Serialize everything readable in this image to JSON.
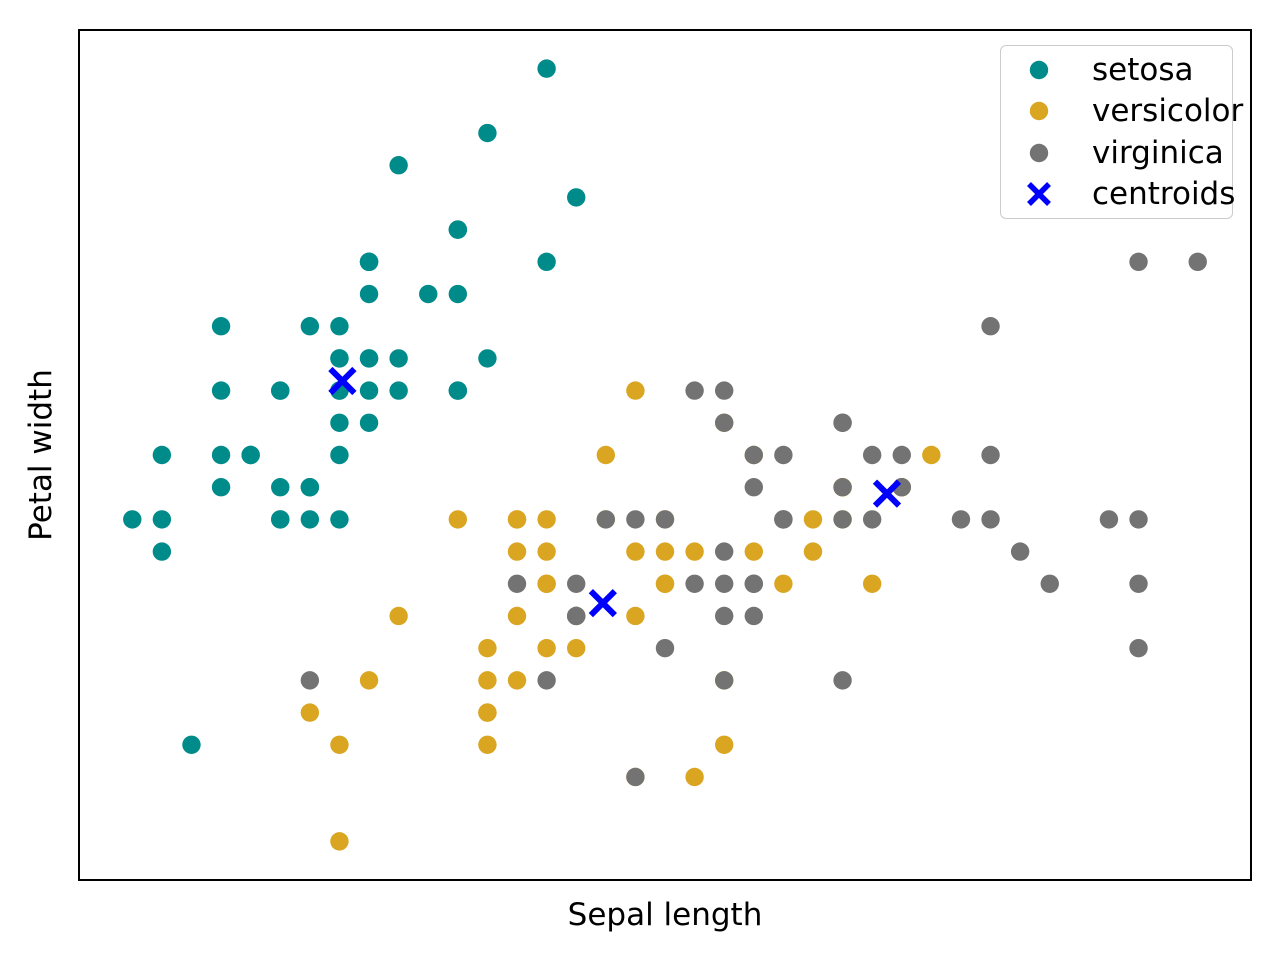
{
  "chart_data": {
    "type": "scatter",
    "title": "",
    "xlabel": "Sepal length",
    "ylabel": "Petal width",
    "xlim": [
      4.12,
      8.08
    ],
    "ylim": [
      1.88,
      4.52
    ],
    "grid": false,
    "ticks_visible": false,
    "axis_color": "#000000",
    "legend": {
      "position": "upper right",
      "border_color": "#cccccc",
      "entries": [
        "setosa",
        "versicolor",
        "virginica",
        "centroids"
      ]
    },
    "series": [
      {
        "name": "setosa",
        "marker": "circle",
        "color": "#008B8B",
        "points": [
          [
            5.1,
            3.5
          ],
          [
            4.9,
            3.0
          ],
          [
            4.7,
            3.2
          ],
          [
            4.6,
            3.1
          ],
          [
            5.0,
            3.6
          ],
          [
            5.4,
            3.9
          ],
          [
            4.6,
            3.4
          ],
          [
            5.0,
            3.4
          ],
          [
            4.4,
            2.9
          ],
          [
            4.9,
            3.1
          ],
          [
            5.4,
            3.7
          ],
          [
            4.8,
            3.4
          ],
          [
            4.8,
            3.0
          ],
          [
            4.3,
            3.0
          ],
          [
            5.8,
            4.0
          ],
          [
            5.7,
            4.4
          ],
          [
            5.4,
            3.9
          ],
          [
            5.1,
            3.5
          ],
          [
            5.7,
            3.8
          ],
          [
            5.1,
            3.8
          ],
          [
            5.4,
            3.4
          ],
          [
            5.1,
            3.7
          ],
          [
            4.6,
            3.6
          ],
          [
            5.1,
            3.3
          ],
          [
            4.8,
            3.4
          ],
          [
            5.0,
            3.0
          ],
          [
            5.0,
            3.4
          ],
          [
            5.2,
            3.5
          ],
          [
            5.2,
            3.4
          ],
          [
            4.7,
            3.2
          ],
          [
            4.8,
            3.1
          ],
          [
            5.4,
            3.4
          ],
          [
            5.2,
            4.1
          ],
          [
            5.5,
            4.2
          ],
          [
            4.9,
            3.1
          ],
          [
            5.0,
            3.2
          ],
          [
            5.5,
            3.5
          ],
          [
            4.9,
            3.6
          ],
          [
            4.4,
            3.0
          ],
          [
            5.1,
            3.4
          ],
          [
            5.0,
            3.5
          ],
          [
            4.5,
            2.3
          ],
          [
            4.4,
            3.2
          ],
          [
            5.0,
            3.5
          ],
          [
            5.1,
            3.8
          ],
          [
            4.8,
            3.0
          ],
          [
            5.1,
            3.8
          ],
          [
            4.6,
            3.2
          ],
          [
            5.3,
            3.7
          ],
          [
            5.0,
            3.3
          ]
        ]
      },
      {
        "name": "versicolor",
        "marker": "circle",
        "color": "#DAA520",
        "points": [
          [
            7.0,
            3.2
          ],
          [
            6.4,
            3.2
          ],
          [
            6.9,
            3.1
          ],
          [
            5.5,
            2.3
          ],
          [
            6.5,
            2.8
          ],
          [
            5.7,
            2.8
          ],
          [
            6.3,
            3.3
          ],
          [
            4.9,
            2.4
          ],
          [
            6.6,
            2.9
          ],
          [
            5.2,
            2.7
          ],
          [
            5.0,
            2.0
          ],
          [
            5.9,
            3.0
          ],
          [
            6.0,
            2.2
          ],
          [
            6.1,
            2.9
          ],
          [
            5.6,
            2.9
          ],
          [
            6.7,
            3.1
          ],
          [
            5.6,
            3.0
          ],
          [
            5.8,
            2.7
          ],
          [
            6.2,
            2.2
          ],
          [
            5.6,
            2.5
          ],
          [
            5.9,
            3.2
          ],
          [
            6.1,
            2.8
          ],
          [
            6.3,
            2.5
          ],
          [
            6.1,
            2.8
          ],
          [
            6.4,
            2.9
          ],
          [
            6.6,
            3.0
          ],
          [
            6.8,
            2.8
          ],
          [
            6.7,
            3.0
          ],
          [
            6.0,
            2.9
          ],
          [
            5.7,
            2.6
          ],
          [
            5.5,
            2.4
          ],
          [
            5.5,
            2.4
          ],
          [
            5.8,
            2.7
          ],
          [
            6.0,
            2.7
          ],
          [
            5.4,
            3.0
          ],
          [
            6.0,
            3.4
          ],
          [
            6.7,
            3.1
          ],
          [
            6.3,
            2.3
          ],
          [
            5.6,
            3.0
          ],
          [
            5.5,
            2.5
          ],
          [
            5.5,
            2.6
          ],
          [
            6.1,
            3.0
          ],
          [
            5.8,
            2.6
          ],
          [
            5.0,
            2.3
          ],
          [
            5.6,
            2.7
          ],
          [
            5.7,
            3.0
          ],
          [
            5.7,
            2.9
          ],
          [
            6.2,
            2.9
          ],
          [
            5.1,
            2.5
          ],
          [
            5.7,
            2.8
          ]
        ]
      },
      {
        "name": "virginica",
        "marker": "circle",
        "color": "#737373",
        "points": [
          [
            6.3,
            3.3
          ],
          [
            5.8,
            2.7
          ],
          [
            7.1,
            3.0
          ],
          [
            6.3,
            2.9
          ],
          [
            6.5,
            3.0
          ],
          [
            7.6,
            3.0
          ],
          [
            4.9,
            2.5
          ],
          [
            7.3,
            2.9
          ],
          [
            6.7,
            2.5
          ],
          [
            7.2,
            3.6
          ],
          [
            6.5,
            3.2
          ],
          [
            6.4,
            2.7
          ],
          [
            6.8,
            3.0
          ],
          [
            5.7,
            2.5
          ],
          [
            5.8,
            2.8
          ],
          [
            6.4,
            3.2
          ],
          [
            6.5,
            3.0
          ],
          [
            7.7,
            3.8
          ],
          [
            7.7,
            2.6
          ],
          [
            6.0,
            2.2
          ],
          [
            6.9,
            3.2
          ],
          [
            5.6,
            2.8
          ],
          [
            7.7,
            2.8
          ],
          [
            6.3,
            2.7
          ],
          [
            6.7,
            3.3
          ],
          [
            7.2,
            3.2
          ],
          [
            6.2,
            2.8
          ],
          [
            6.1,
            3.0
          ],
          [
            6.4,
            2.8
          ],
          [
            7.2,
            3.0
          ],
          [
            7.4,
            2.8
          ],
          [
            7.9,
            3.8
          ],
          [
            6.4,
            2.8
          ],
          [
            6.3,
            2.8
          ],
          [
            6.1,
            2.6
          ],
          [
            7.7,
            3.0
          ],
          [
            6.3,
            3.4
          ],
          [
            6.4,
            3.1
          ],
          [
            6.0,
            3.0
          ],
          [
            6.9,
            3.1
          ],
          [
            6.7,
            3.1
          ],
          [
            6.9,
            3.1
          ],
          [
            5.8,
            2.7
          ],
          [
            6.8,
            3.2
          ],
          [
            6.7,
            3.3
          ],
          [
            6.7,
            3.0
          ],
          [
            6.3,
            2.5
          ],
          [
            6.5,
            3.0
          ],
          [
            6.2,
            3.4
          ],
          [
            5.9,
            3.0
          ]
        ]
      },
      {
        "name": "centroids",
        "marker": "x",
        "color": "#0000FF",
        "points": [
          [
            5.01,
            3.43
          ],
          [
            5.89,
            2.74
          ],
          [
            6.85,
            3.08
          ]
        ]
      }
    ]
  }
}
